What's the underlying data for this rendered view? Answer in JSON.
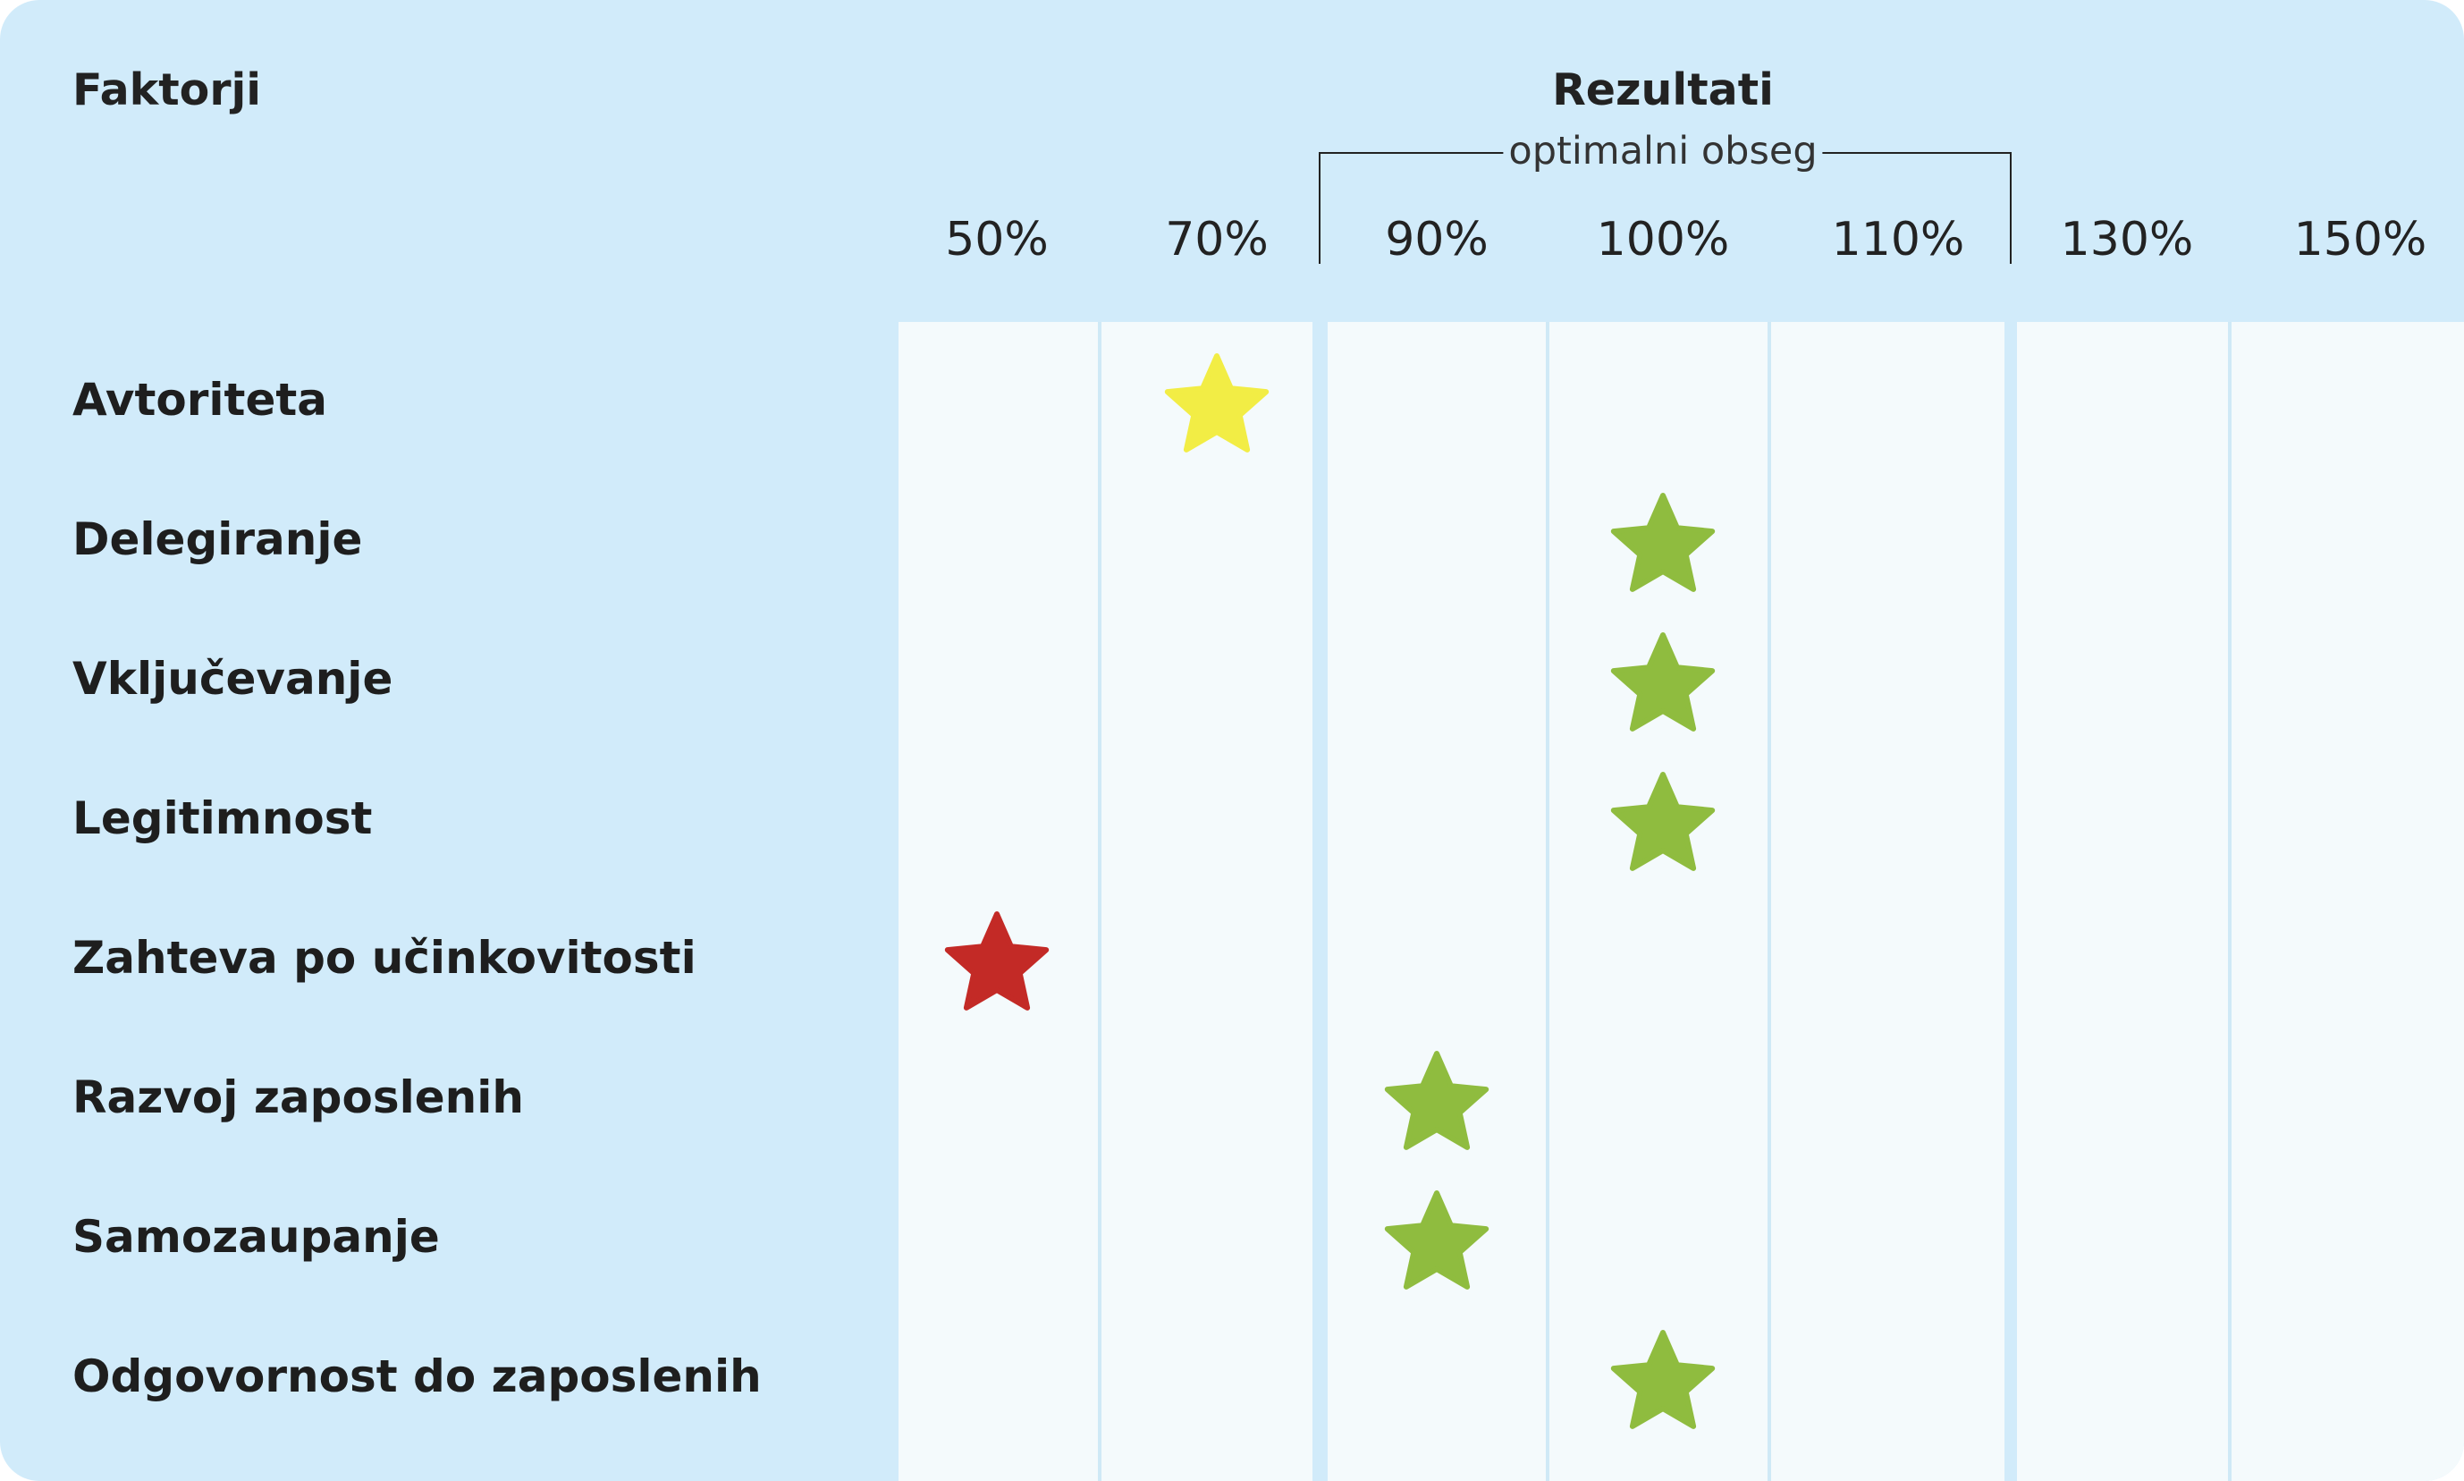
{
  "header": {
    "factors_label": "Faktorji",
    "results_label": "Rezultati",
    "optimal_label": "optimalni obseg"
  },
  "colors": {
    "background": "#d1ebfa",
    "plot_band": "#f4fafc",
    "optimal": "#8fbc3f",
    "warning": "#f2ed45",
    "critical": "#c32a26"
  },
  "chart_data": {
    "type": "scatter",
    "marker": "star",
    "xlabel": "Rezultati",
    "ylabel": "Faktorji",
    "x_ticks": [
      "50%",
      "70%",
      "90%",
      "100%",
      "110%",
      "130%",
      "150%"
    ],
    "optimal_range": {
      "label": "optimalni obseg",
      "from": "90%",
      "to": "110%"
    },
    "points": [
      {
        "factor": "Avtoriteta",
        "value": "70%",
        "status": "warning"
      },
      {
        "factor": "Delegiranje",
        "value": "100%",
        "status": "optimal"
      },
      {
        "factor": "Vključevanje",
        "value": "100%",
        "status": "optimal"
      },
      {
        "factor": "Legitimnost",
        "value": "100%",
        "status": "optimal"
      },
      {
        "factor": "Zahteva po učinkovitosti",
        "value": "50%",
        "status": "critical"
      },
      {
        "factor": "Razvoj zaposlenih",
        "value": "90%",
        "status": "optimal"
      },
      {
        "factor": "Samozaupanje",
        "value": "90%",
        "status": "optimal"
      },
      {
        "factor": "Odgovornost do zaposlenih",
        "value": "100%",
        "status": "optimal"
      }
    ]
  }
}
